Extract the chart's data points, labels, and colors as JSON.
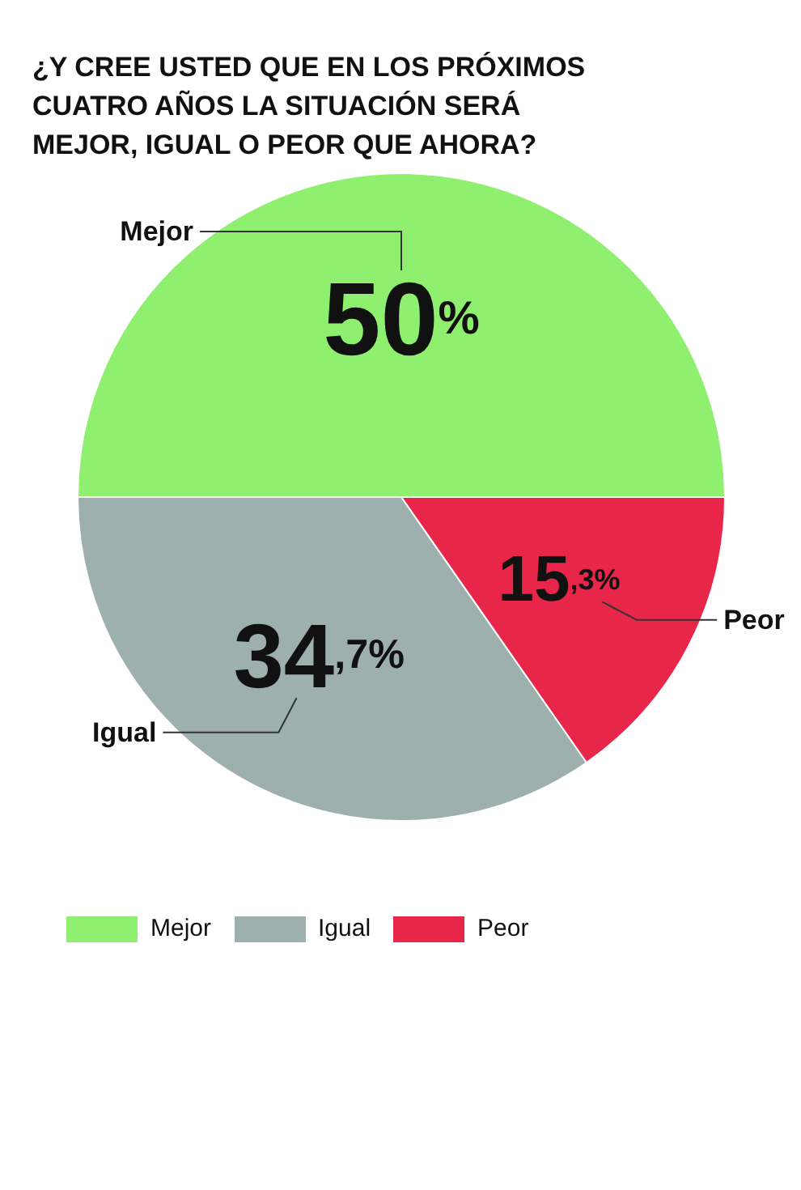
{
  "chart_data": {
    "type": "pie",
    "title": "¿Y CREE USTED QUE EN LOS PRÓXIMOS CUATRO AÑOS LA SITUACIÓN SERÁ MEJOR, IGUAL O PEOR QUE AHORA?",
    "categories": [
      "Mejor",
      "Igual",
      "Peor"
    ],
    "values": [
      50,
      34.7,
      15.3
    ],
    "value_labels": [
      "50%",
      "34,7%",
      "15,3%"
    ],
    "colors": [
      "#8ef06e",
      "#9eb0ad",
      "#e8264a"
    ],
    "legend": "bottom left"
  }
}
